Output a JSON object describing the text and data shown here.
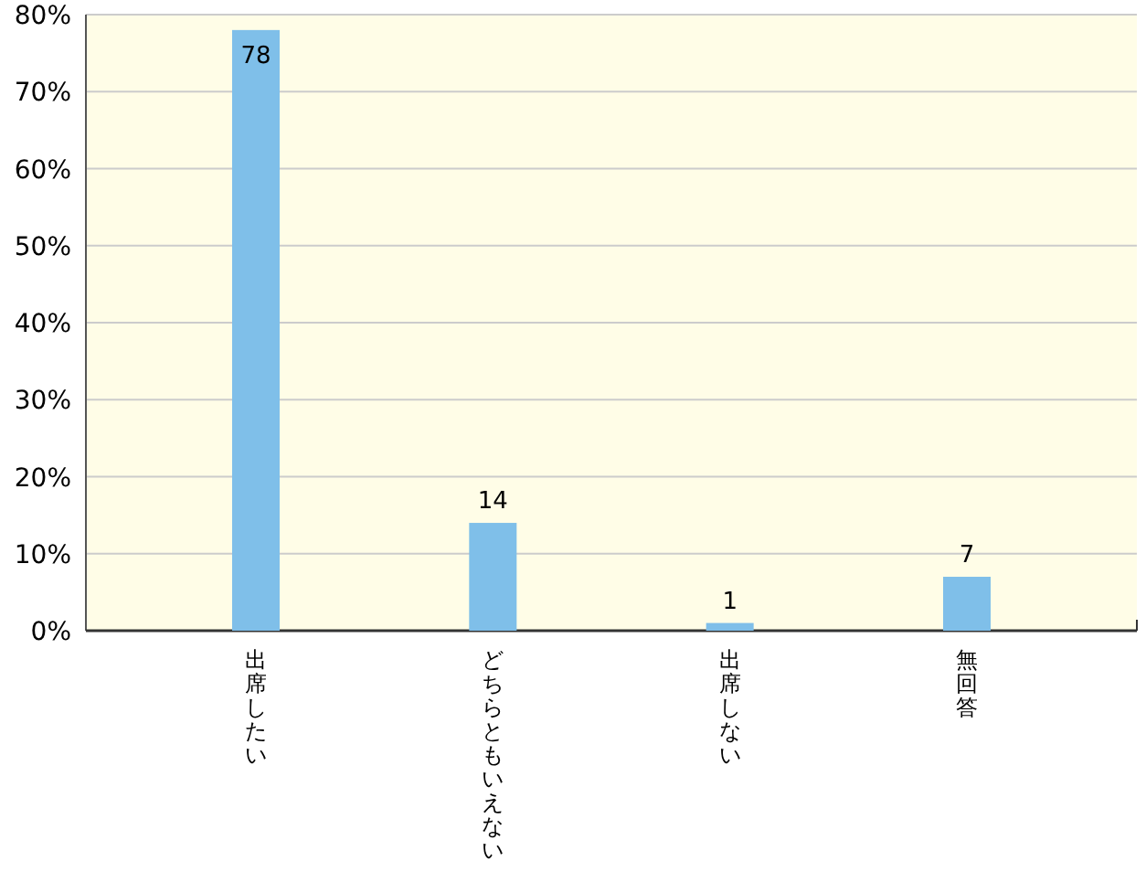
{
  "chart_data": {
    "type": "bar",
    "categories": [
      "出席したい",
      "どちらともいえない",
      "出席しない",
      "無回答"
    ],
    "values": [
      78,
      14,
      1,
      7
    ],
    "color": "#7fbfe9",
    "data_labels": true,
    "grid": "y",
    "ylim": [
      0,
      80
    ],
    "yticks": [
      {
        "value": 0,
        "label": "0%"
      },
      {
        "value": 10,
        "label": "10%"
      },
      {
        "value": 20,
        "label": "20%"
      },
      {
        "value": 30,
        "label": "30%"
      },
      {
        "value": 40,
        "label": "40%"
      },
      {
        "value": 50,
        "label": "50%"
      },
      {
        "value": 60,
        "label": "60%"
      },
      {
        "value": 70,
        "label": "70%"
      },
      {
        "value": 80,
        "label": "80%"
      }
    ]
  }
}
